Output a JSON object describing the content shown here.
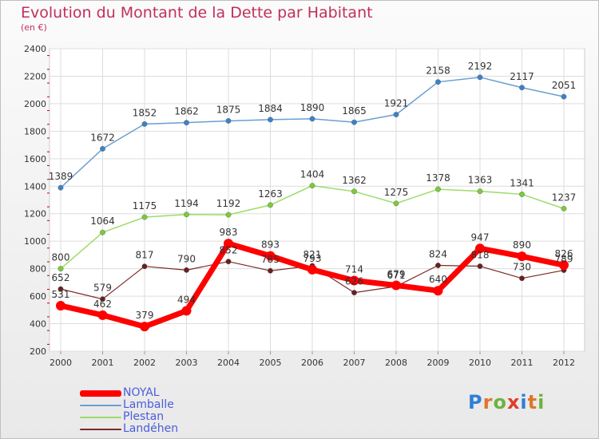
{
  "title": "Evolution du Montant de la Dette par Habitant",
  "subtitle": "(en €)",
  "logo": {
    "letters": [
      "P",
      "r",
      "o",
      "x",
      "i",
      "t",
      "i"
    ],
    "colors": [
      "#2f7fd6",
      "#e0752a",
      "#6db33f",
      "#e03d2a",
      "#2f7fd6",
      "#e0752a",
      "#6db33f"
    ]
  },
  "chart_data": {
    "type": "line",
    "title": "Evolution du Montant de la Dette par Habitant",
    "ylabel": "(en €)",
    "x": [
      "2000",
      "2001",
      "2002",
      "2003",
      "2004",
      "2005",
      "2006",
      "2007",
      "2008",
      "2009",
      "2010",
      "2011",
      "2012"
    ],
    "ylim": [
      200,
      2400
    ],
    "yticks": [
      200,
      400,
      600,
      800,
      1000,
      1200,
      1400,
      1600,
      1800,
      2000,
      2200,
      2400
    ],
    "grid": true,
    "legend_position": "bottom-left",
    "series": [
      {
        "name": "NOYAL",
        "color": "#ff0000",
        "width": 7,
        "values": [
          531,
          462,
          379,
          494,
          983,
          893,
          793,
          714,
          679,
          640,
          947,
          890,
          826
        ],
        "labels": [
          "531",
          "462",
          "379",
          "494",
          "983",
          "893",
          "793",
          "714",
          "679",
          "640",
          "947",
          "890",
          "826"
        ]
      },
      {
        "name": "Lamballe",
        "color": "#6a9fd2",
        "width": 1.5,
        "values": [
          1389,
          1672,
          1852,
          1862,
          1875,
          1884,
          1890,
          1865,
          1921,
          2158,
          2192,
          2117,
          2051
        ],
        "labels": [
          "1389",
          "1672",
          "1852",
          "1862",
          "1875",
          "1884",
          "1890",
          "1865",
          "1921",
          "2158",
          "2192",
          "2117",
          "2051"
        ]
      },
      {
        "name": "Plestan",
        "color": "#9bdc6a",
        "width": 1.5,
        "values": [
          800,
          1064,
          1175,
          1194,
          1192,
          1263,
          1404,
          1362,
          1275,
          1378,
          1363,
          1341,
          1237
        ],
        "labels": [
          "800",
          "1064",
          "1175",
          "1194",
          "1192",
          "1263",
          "1404",
          "1362",
          "1275",
          "1378",
          "1363",
          "1341",
          "1237"
        ]
      },
      {
        "name": "Landéhen",
        "color": "#7a2a2a",
        "width": 1.2,
        "values": [
          652,
          579,
          817,
          790,
          852,
          785,
          821,
          626,
          671,
          824,
          818,
          730,
          789
        ],
        "labels": [
          "652",
          "579",
          "817",
          "790",
          "852",
          "785",
          "821",
          "626",
          "671",
          "824",
          "818",
          "730",
          "789"
        ]
      }
    ]
  }
}
